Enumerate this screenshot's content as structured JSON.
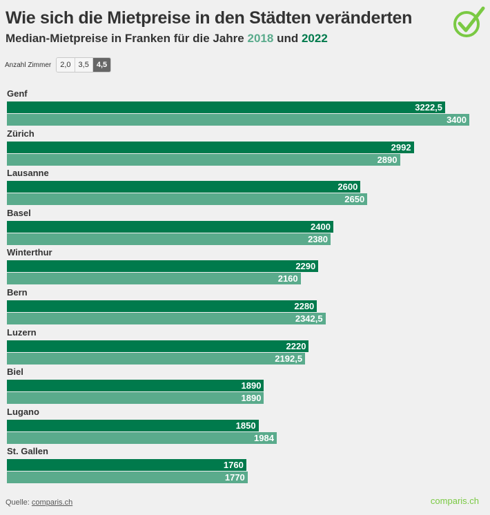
{
  "header": {
    "title": "Wie sich die Mietpreise in den Städten veränderten",
    "subtitle_prefix": "Median-Mietpreise in Franken für die Jahre",
    "year_a": "2018",
    "subtitle_mid": "und",
    "year_b": "2022"
  },
  "filter": {
    "label": "Anzahl Zimmer",
    "options": [
      "2,0",
      "3,5",
      "4,5"
    ],
    "selected": "4,5"
  },
  "colors": {
    "2022": "#007a4c",
    "2018": "#5aab8c",
    "brand": "#7ac943"
  },
  "chart_data": {
    "type": "bar",
    "orientation": "horizontal",
    "xlim": [
      0,
      3400
    ],
    "categories": [
      "Genf",
      "Zürich",
      "Lausanne",
      "Basel",
      "Winterthur",
      "Bern",
      "Luzern",
      "Biel",
      "Lugano",
      "St. Gallen"
    ],
    "series": [
      {
        "name": "2022",
        "labels": [
          "3222,5",
          "2992",
          "2600",
          "2400",
          "2290",
          "2280",
          "2220",
          "1890",
          "1850",
          "1760"
        ],
        "values": [
          3222.5,
          2992,
          2600,
          2400,
          2290,
          2280,
          2220,
          1890,
          1850,
          1760
        ]
      },
      {
        "name": "2018",
        "labels": [
          "3400",
          "2890",
          "2650",
          "2380",
          "2160",
          "2342,5",
          "2192,5",
          "1890",
          "1984",
          "1770"
        ],
        "values": [
          3400,
          2890,
          2650,
          2380,
          2160,
          2342.5,
          2192.5,
          1890,
          1984,
          1770
        ]
      }
    ]
  },
  "footer": {
    "source_label": "Quelle:",
    "source_link": "comparis.ch",
    "brand": "comparis.ch"
  }
}
